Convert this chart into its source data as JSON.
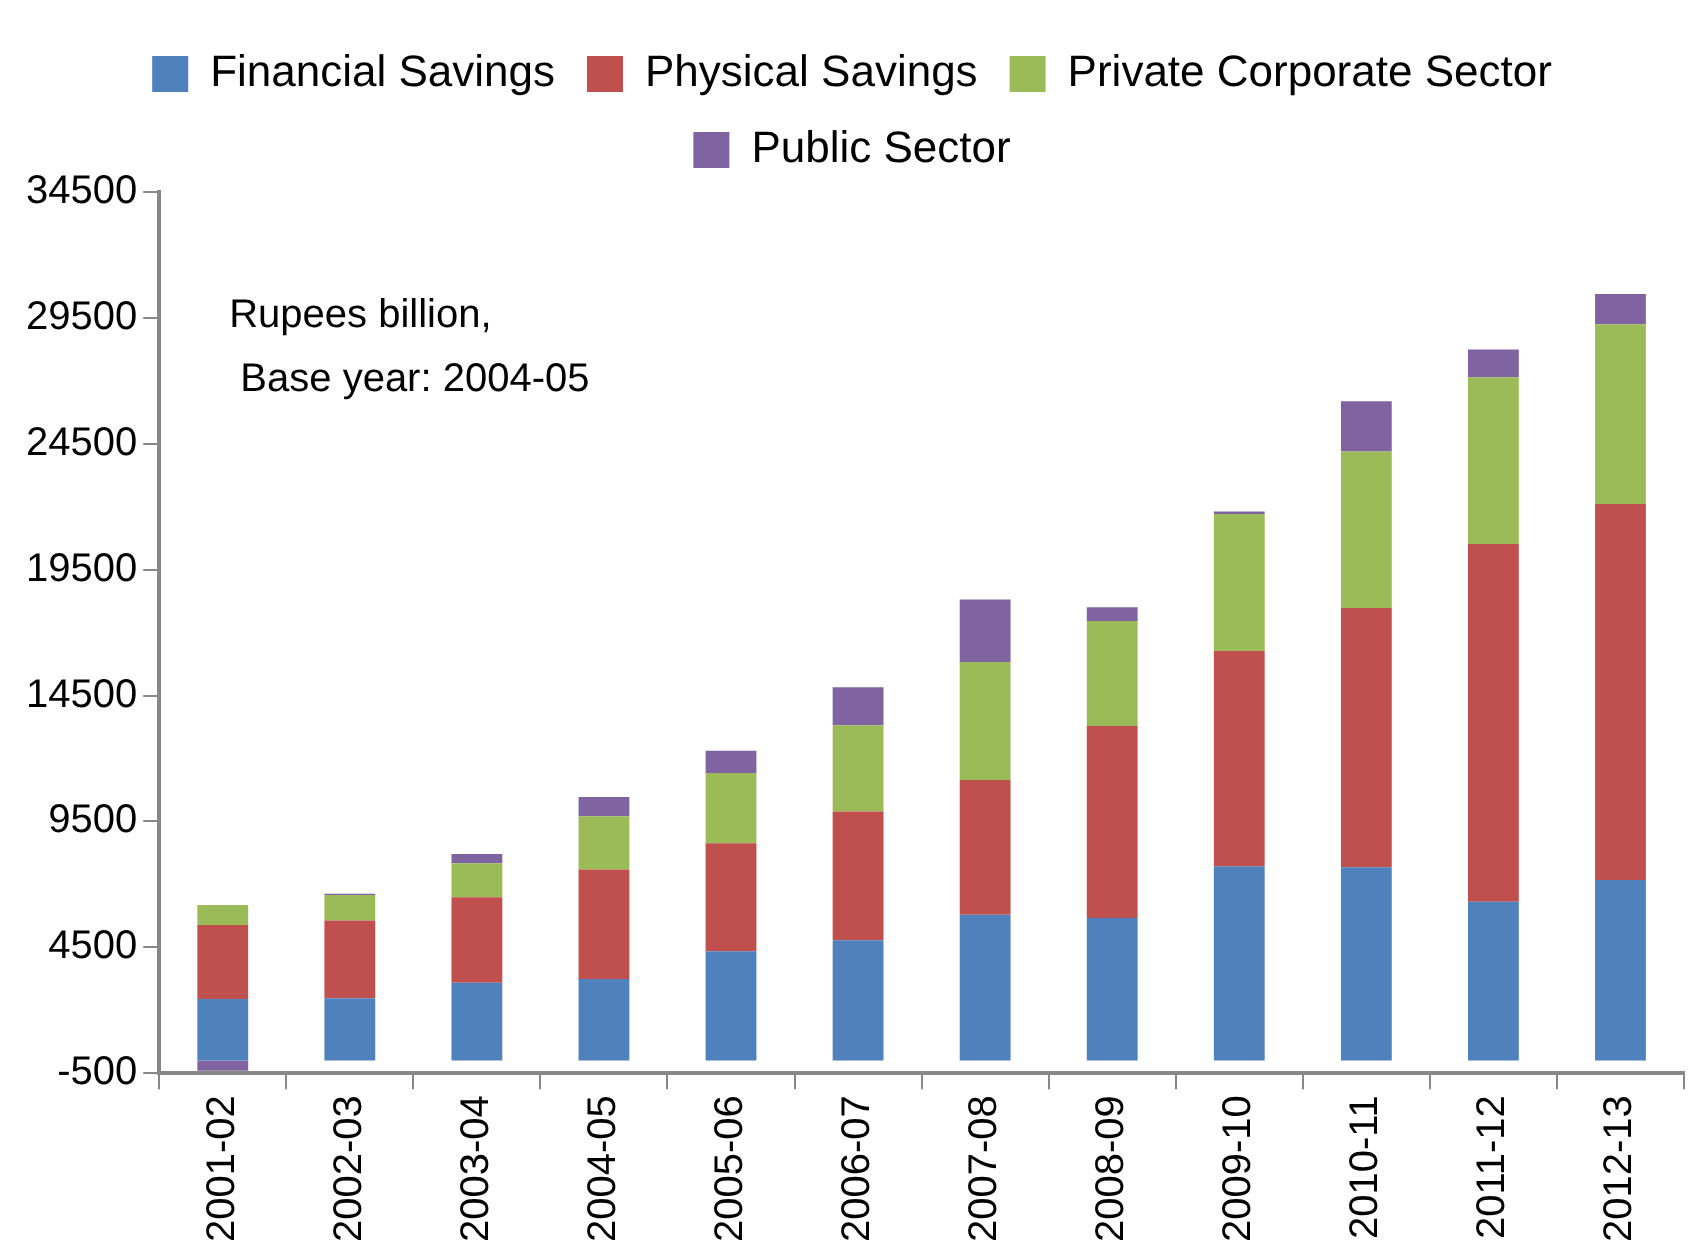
{
  "chart_data": {
    "type": "bar",
    "stacked": true,
    "legend": "top",
    "grid": false,
    "annotations": [
      "Rupees billion,",
      " Base year: 2004-05"
    ],
    "categories": [
      "2001-02",
      "2002-03",
      "2003-04",
      "2004-05",
      "2005-06",
      "2006-07",
      "2007-08",
      "2008-09",
      "2009-10",
      "2010-11",
      "2011-12",
      "2012-13"
    ],
    "ylim": [
      -500,
      34500
    ],
    "yticks": [
      -500,
      4500,
      9500,
      14500,
      19500,
      24500,
      29500,
      34500
    ],
    "series": [
      {
        "name": "Financial Savings",
        "color": "#4f81bd",
        "values": [
          2445,
          2480,
          3090,
          3245,
          4345,
          4780,
          5790,
          5660,
          7720,
          7680,
          6305,
          7170
        ]
      },
      {
        "name": "Physical Savings",
        "color": "#c0504d",
        "values": [
          2940,
          3090,
          3400,
          4345,
          4290,
          5110,
          5360,
          7630,
          8545,
          10295,
          14215,
          14940
        ]
      },
      {
        "name": "Private Corporate Sector",
        "color": "#9bbb59",
        "values": [
          800,
          1010,
          1350,
          2115,
          2785,
          3435,
          4685,
          4170,
          5450,
          6220,
          6620,
          7140
        ]
      },
      {
        "name": "Public Sector",
        "color": "#8064a2",
        "values": [
          -400,
          50,
          365,
          770,
          890,
          1500,
          2480,
          550,
          95,
          1995,
          1100,
          1195
        ]
      }
    ]
  }
}
